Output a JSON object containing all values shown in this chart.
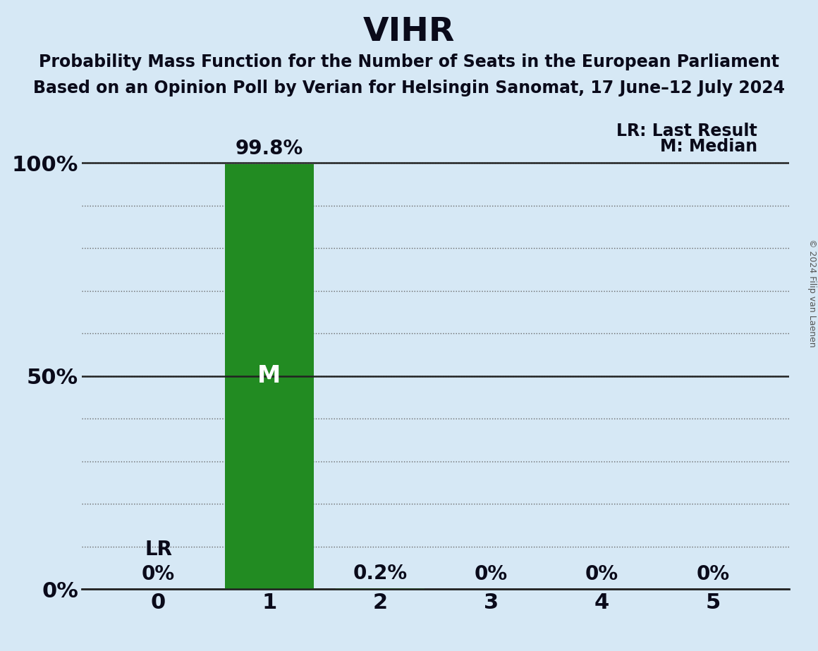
{
  "title": "VIHR",
  "subtitle1": "Probability Mass Function for the Number of Seats in the European Parliament",
  "subtitle2": "Based on an Opinion Poll by Verian for Helsingin Sanomat, 17 June–12 July 2024",
  "categories": [
    0,
    1,
    2,
    3,
    4,
    5
  ],
  "values": [
    0.0,
    0.998,
    0.002,
    0.0,
    0.0,
    0.0
  ],
  "bar_color": "#228B22",
  "background_color": "#D6E8F5",
  "text_color": "#0a0a1a",
  "median": 1,
  "last_result": 0,
  "legend_lr": "LR: Last Result",
  "legend_m": "M: Median",
  "copyright": "© 2024 Filip van Laenen",
  "yticks": [
    0.0,
    0.1,
    0.2,
    0.3,
    0.4,
    0.5,
    0.6,
    0.7,
    0.8,
    0.9,
    1.0
  ],
  "ytick_labels": [
    "0%",
    "",
    "",
    "",
    "",
    "50%",
    "",
    "",
    "",
    "",
    "100%"
  ],
  "value_labels": [
    "0%",
    "99.8%",
    "0.2%",
    "0%",
    "0%",
    "0%"
  ]
}
